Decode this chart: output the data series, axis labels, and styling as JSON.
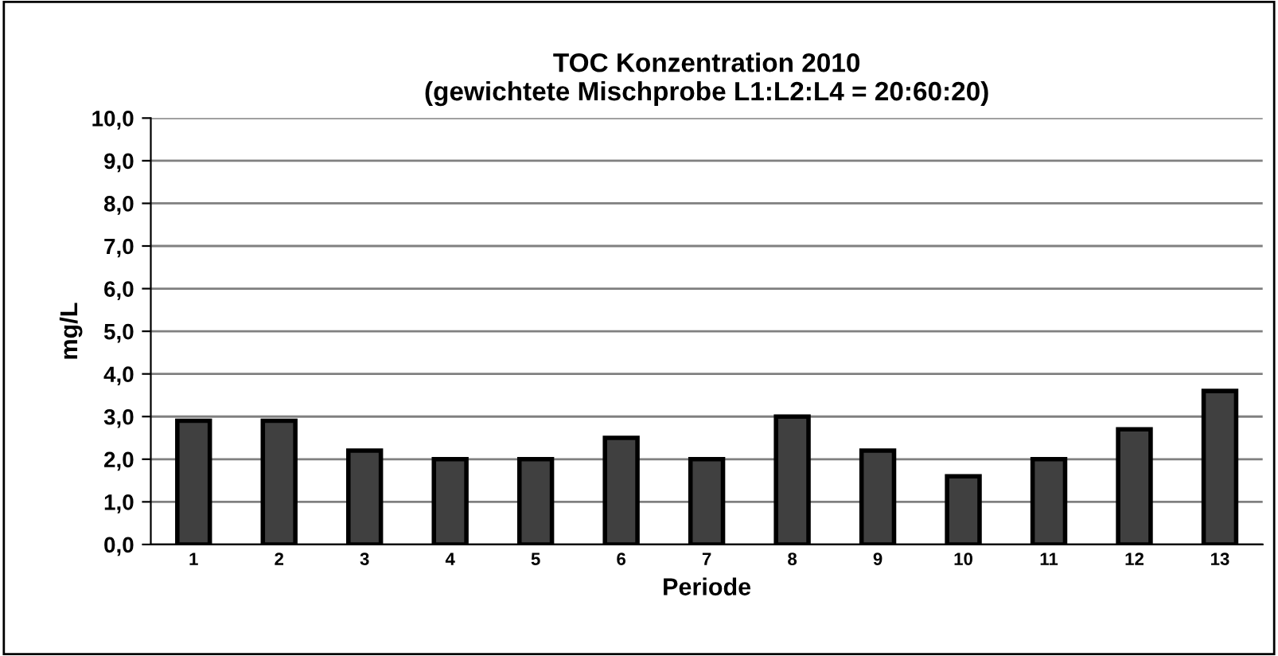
{
  "chart_data": {
    "type": "bar",
    "title": "TOC Konzentration 2010\n(gewichtete Mischprobe L1:L2:L4 = 20:60:20)",
    "xlabel": "Periode",
    "ylabel": "mg/L",
    "categories": [
      "1",
      "2",
      "3",
      "4",
      "5",
      "6",
      "7",
      "8",
      "9",
      "10",
      "11",
      "12",
      "13"
    ],
    "values": [
      2.9,
      2.9,
      2.2,
      2.0,
      2.0,
      2.5,
      2.0,
      3.0,
      2.2,
      1.6,
      2.0,
      2.7,
      3.6
    ],
    "color": "#404040",
    "ylim": [
      0,
      10
    ],
    "yticks": [
      {
        "value": 0,
        "label": "0,0"
      },
      {
        "value": 1,
        "label": "1,0"
      },
      {
        "value": 2,
        "label": "2,0"
      },
      {
        "value": 3,
        "label": "3,0"
      },
      {
        "value": 4,
        "label": "4,0"
      },
      {
        "value": 5,
        "label": "5,0"
      },
      {
        "value": 6,
        "label": "6,0"
      },
      {
        "value": 7,
        "label": "7,0"
      },
      {
        "value": 8,
        "label": "8,0"
      },
      {
        "value": 9,
        "label": "9,0"
      },
      {
        "value": 10,
        "label": "10,0"
      }
    ],
    "grid": "y"
  }
}
